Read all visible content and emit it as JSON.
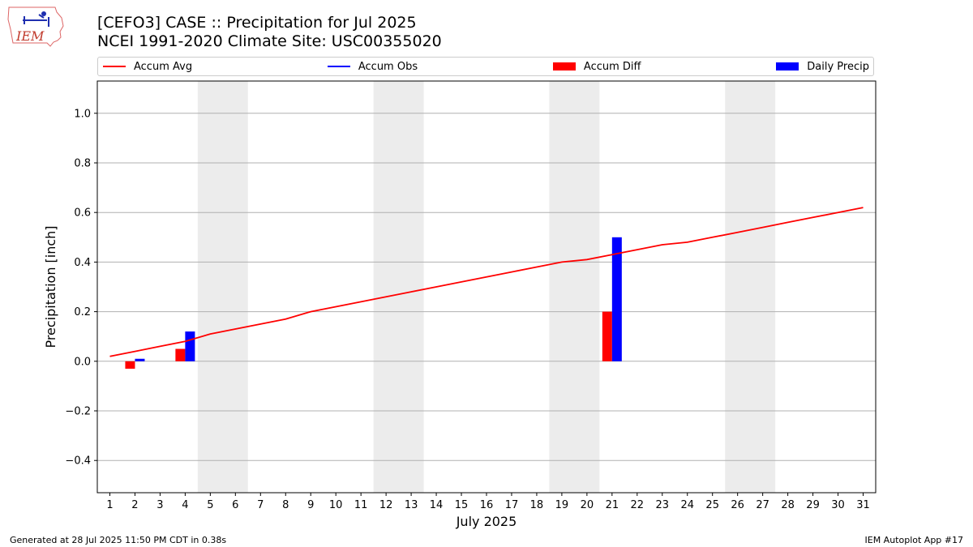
{
  "header": {
    "logo_text": "IEM",
    "title_line1": "[CEFO3] CASE :: Precipitation for Jul 2025",
    "title_line2": "NCEI 1991-2020 Climate Site: USC00355020"
  },
  "footer": {
    "left": "Generated at 28 Jul 2025 11:50 PM CDT in 0.38s",
    "right": "IEM Autoplot App #17"
  },
  "chart_data": {
    "type": "bar",
    "xlabel": "July 2025",
    "ylabel": "Precipitation [inch]",
    "xlim": [
      0.5,
      31.5
    ],
    "ylim": [
      -0.53,
      1.13
    ],
    "yticks": [
      -0.4,
      -0.2,
      0.0,
      0.2,
      0.4,
      0.6,
      0.8,
      1.0
    ],
    "ytick_labels": [
      "−0.4",
      "−0.2",
      "0.0",
      "0.2",
      "0.4",
      "0.6",
      "0.8",
      "1.0"
    ],
    "x": [
      1,
      2,
      3,
      4,
      5,
      6,
      7,
      8,
      9,
      10,
      11,
      12,
      13,
      14,
      15,
      16,
      17,
      18,
      19,
      20,
      21,
      22,
      23,
      24,
      25,
      26,
      27,
      28,
      29,
      30,
      31
    ],
    "grid": "horizontal",
    "legend_position": "top",
    "weekend_bands": [
      [
        4.5,
        6.5
      ],
      [
        11.5,
        13.5
      ],
      [
        18.5,
        20.5
      ],
      [
        25.5,
        27.5
      ]
    ],
    "colors": {
      "avg": "#ff0000",
      "obs": "#0000ff",
      "diff": "#ff0000",
      "daily": "#0000ff",
      "weekend": "#ececec",
      "grid": "#b0b0b0"
    },
    "series": [
      {
        "name": "Accum Avg",
        "kind": "line",
        "x": [
          1,
          2,
          3,
          4,
          5,
          6,
          7,
          8,
          9,
          10,
          11,
          12,
          13,
          14,
          15,
          16,
          17,
          18,
          19,
          20,
          21,
          22,
          23,
          24,
          25,
          26,
          27,
          28,
          29,
          30,
          31
        ],
        "values": [
          0.02,
          0.04,
          0.06,
          0.08,
          0.11,
          0.13,
          0.15,
          0.17,
          0.2,
          0.22,
          0.24,
          0.26,
          0.28,
          0.3,
          0.32,
          0.34,
          0.36,
          0.38,
          0.4,
          0.41,
          0.43,
          0.45,
          0.47,
          0.48,
          0.5,
          0.52,
          0.54,
          0.56,
          0.58,
          0.6,
          0.62
        ]
      },
      {
        "name": "Accum Obs",
        "kind": "line",
        "x": [],
        "values": []
      },
      {
        "name": "Accum Diff",
        "kind": "bar",
        "x": [
          2,
          4,
          21
        ],
        "values": [
          -0.03,
          0.05,
          0.2
        ]
      },
      {
        "name": "Daily Precip",
        "kind": "bar",
        "x": [
          2,
          4,
          21
        ],
        "values": [
          0.01,
          0.12,
          0.5
        ]
      }
    ]
  }
}
